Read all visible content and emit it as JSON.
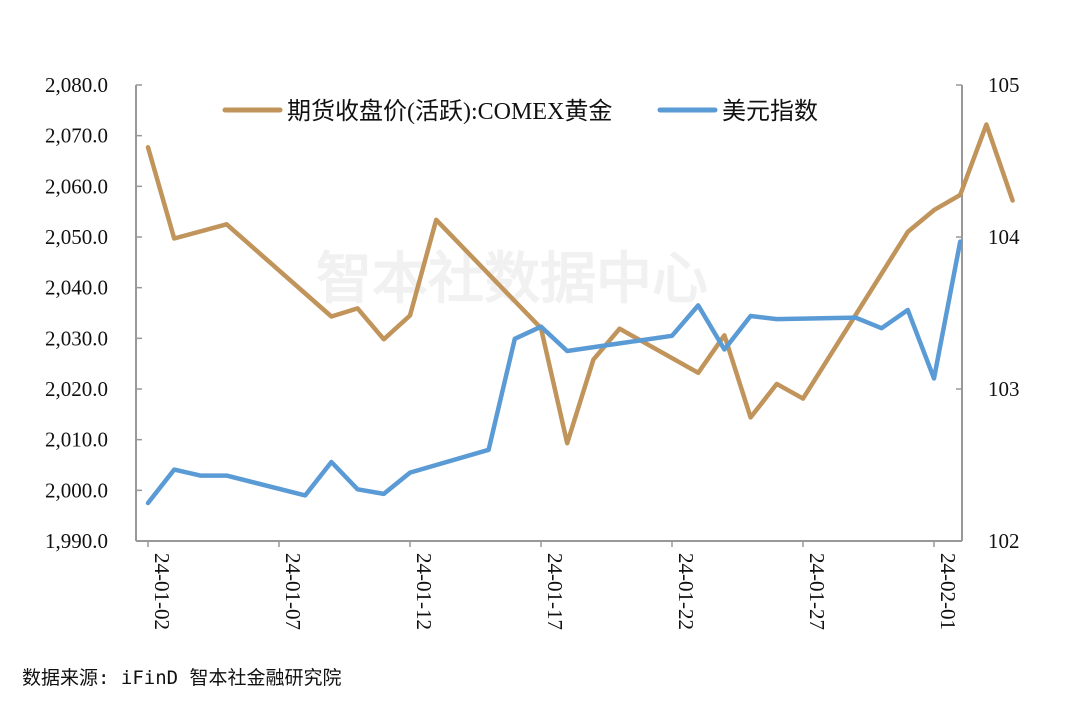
{
  "chart_data": {
    "type": "line",
    "x": [
      "24-01-02",
      "24-01-03",
      "24-01-04",
      "24-01-05",
      "24-01-08",
      "24-01-09",
      "24-01-10",
      "24-01-11",
      "24-01-12",
      "24-01-15",
      "24-01-16",
      "24-01-17",
      "24-01-18",
      "24-01-19",
      "24-01-22",
      "24-01-23",
      "24-01-24",
      "24-01-25",
      "24-01-26",
      "24-01-29",
      "24-01-30",
      "24-01-31",
      "24-02-01",
      "24-02-02"
    ],
    "x_tick_labels": [
      "24-01-02",
      "24-01-07",
      "24-01-12",
      "24-01-17",
      "24-01-22",
      "24-01-27",
      "24-02-01"
    ],
    "series": [
      {
        "name": "期货收盘价(活跃):COMEX黄金",
        "axis": "left",
        "color": "#C0945A",
        "points": [
          [
            "24-01-02",
            2067.7
          ],
          [
            "24-01-03",
            2049.7
          ],
          [
            "24-01-05",
            2052.5
          ],
          [
            "24-01-09",
            2034.3
          ],
          [
            "24-01-10",
            2035.9
          ],
          [
            "24-01-11",
            2029.8
          ],
          [
            "24-01-12",
            2034.5
          ],
          [
            "24-01-13",
            2053.4
          ],
          [
            "24-01-17",
            2032.0
          ],
          [
            "24-01-18",
            2009.3
          ],
          [
            "24-01-19",
            2025.8
          ],
          [
            "24-01-20",
            2031.9
          ],
          [
            "24-01-23",
            2023.2
          ],
          [
            "24-01-24",
            2030.6
          ],
          [
            "24-01-25",
            2014.4
          ],
          [
            "24-01-26",
            2021.0
          ],
          [
            "24-01-27",
            2018.1
          ],
          [
            "24-01-31",
            2051.0
          ],
          [
            "24-02-01",
            2055.3
          ],
          [
            "24-02-02",
            2058.3
          ],
          [
            "24-02-03",
            2072.2
          ],
          [
            "24-02-04",
            2057.2
          ]
        ]
      },
      {
        "name": "美元指数",
        "axis": "right",
        "color": "#5B9BD5",
        "points": [
          [
            "24-01-02",
            102.25
          ],
          [
            "24-01-03",
            102.47
          ],
          [
            "24-01-04",
            102.43
          ],
          [
            "24-01-05",
            102.43
          ],
          [
            "24-01-08",
            102.3
          ],
          [
            "24-01-09",
            102.52
          ],
          [
            "24-01-10",
            102.34
          ],
          [
            "24-01-11",
            102.31
          ],
          [
            "24-01-12",
            102.45
          ],
          [
            "24-01-15",
            102.6
          ],
          [
            "24-01-16",
            103.33
          ],
          [
            "24-01-17",
            103.41
          ],
          [
            "24-01-18",
            103.25
          ],
          [
            "24-01-20",
            103.3
          ],
          [
            "24-01-22",
            103.35
          ],
          [
            "24-01-23",
            103.55
          ],
          [
            "24-01-24",
            103.26
          ],
          [
            "24-01-25",
            103.48
          ],
          [
            "24-01-26",
            103.46
          ],
          [
            "24-01-29",
            103.47
          ],
          [
            "24-01-30",
            103.4
          ],
          [
            "24-01-31",
            103.52
          ],
          [
            "24-02-01",
            103.07
          ],
          [
            "24-02-02",
            103.97
          ]
        ]
      }
    ],
    "left_axis": {
      "ylim": [
        1990,
        2080
      ],
      "ticks": [
        "2,080.0",
        "2,070.0",
        "2,060.0",
        "2,050.0",
        "2,040.0",
        "2,030.0",
        "2,020.0",
        "2,010.0",
        "2,000.0",
        "1,990.0"
      ]
    },
    "right_axis": {
      "ylim": [
        102,
        105
      ],
      "ticks": [
        "105",
        "104",
        "103",
        "102"
      ]
    },
    "legend_position": "top",
    "grid": false
  },
  "watermark": "智本社数据中心",
  "source": "数据来源: iFinD  智本社金融研究院"
}
